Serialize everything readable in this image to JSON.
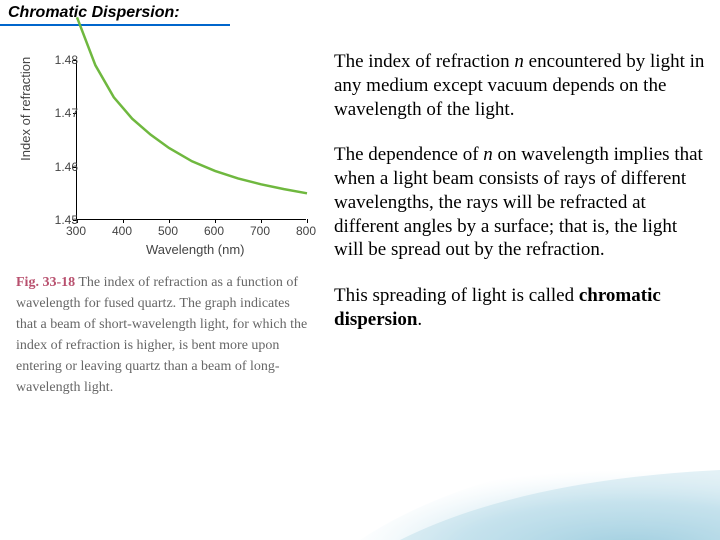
{
  "title": "Chromatic Dispersion:",
  "chart": {
    "type": "line",
    "ylabel": "Index of refraction",
    "xlabel": "Wavelength (nm)",
    "xlim": [
      300,
      800
    ],
    "ylim": [
      1.45,
      1.48
    ],
    "xticks": [
      300,
      400,
      500,
      600,
      700,
      800
    ],
    "yticks": [
      1.45,
      1.46,
      1.47,
      1.48
    ],
    "line_color": "#6fb83f",
    "line_width": 2.5,
    "background_color": "#ffffff",
    "axis_color": "#000000",
    "tick_font_color": "#444444",
    "tick_fontsize": 12,
    "label_fontsize": 13,
    "points_x": [
      300,
      340,
      380,
      420,
      460,
      500,
      550,
      600,
      650,
      700,
      750,
      800
    ],
    "points_y": [
      1.488,
      1.479,
      1.473,
      1.469,
      1.466,
      1.4635,
      1.461,
      1.4592,
      1.4578,
      1.4567,
      1.4558,
      1.455
    ]
  },
  "caption": {
    "fig_label": "Fig. 33-18",
    "text": "The index of refraction as a function of wavelength for fused quartz. The graph indicates that a beam of short-wavelength light, for which the index of refraction is higher, is bent more upon entering or leaving quartz than a beam of long-wavelength light."
  },
  "para1_a": "The index of refraction ",
  "para1_n": "n",
  "para1_b": " encountered by light in any medium except vacuum depends on the wavelength of the light.",
  "para2_a": "The dependence of ",
  "para2_n": "n",
  "para2_b": " on wavelength implies that when a light beam consists of rays of different wavelengths, the rays will be refracted at different angles by a surface; that is, the light will be spread out by the refraction.",
  "para3_a": "This spreading of light is called ",
  "para3_b": "chromatic dispersion",
  "para3_c": ".",
  "swoosh_colors": {
    "light": "#cfe8f2",
    "mid": "#8fc7dd",
    "dark": "#5aa9c7"
  }
}
